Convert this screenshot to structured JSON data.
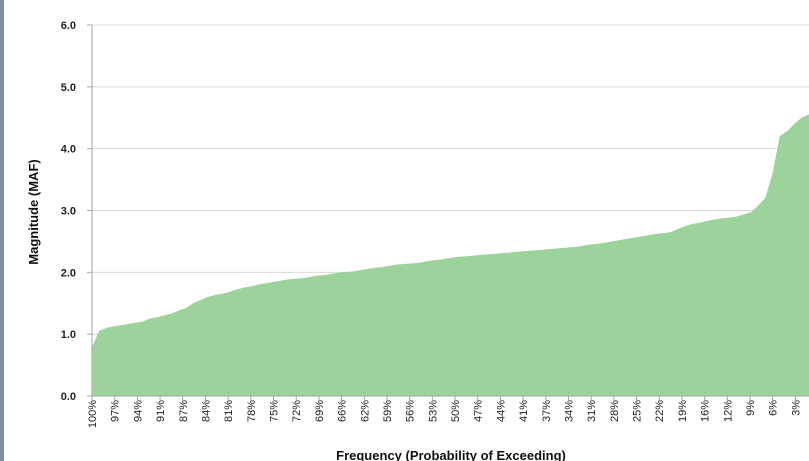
{
  "chart_data": {
    "type": "area",
    "title": "",
    "xlabel": "Frequency (Probability of Exceeding)",
    "ylabel": "Magnitude (MAF)",
    "ylim": [
      0,
      6
    ],
    "y_ticks": [
      "0.0",
      "1.0",
      "2.0",
      "3.0",
      "4.0",
      "5.0",
      "6.0"
    ],
    "grid": "horizontal",
    "legend": "none",
    "fill_color": "#9bd39b",
    "x_ticks": [
      "100%",
      "97%",
      "94%",
      "91%",
      "87%",
      "84%",
      "81%",
      "78%",
      "75%",
      "72%",
      "69%",
      "66%",
      "62%",
      "59%",
      "56%",
      "53%",
      "50%",
      "47%",
      "44%",
      "41%",
      "37%",
      "34%",
      "31%",
      "28%",
      "25%",
      "22%",
      "19%",
      "16%",
      "12%",
      "9%",
      "6%",
      "3%"
    ],
    "series": [
      {
        "name": "",
        "x": [
          100,
          99,
          98,
          97,
          96,
          95,
          94,
          93,
          92,
          91,
          90,
          89,
          88,
          87,
          86,
          85,
          84,
          83,
          82,
          81,
          80,
          79,
          78,
          77,
          76,
          75,
          74,
          73,
          72,
          71,
          70,
          69,
          68,
          67,
          66,
          65,
          64,
          63,
          62,
          61,
          60,
          59,
          58,
          57,
          56,
          55,
          54,
          53,
          52,
          51,
          50,
          49,
          48,
          47,
          46,
          45,
          44,
          43,
          42,
          41,
          40,
          39,
          38,
          37,
          36,
          35,
          34,
          33,
          32,
          31,
          30,
          29,
          28,
          27,
          26,
          25,
          24,
          23,
          22,
          21,
          20,
          19,
          18,
          17,
          16,
          15,
          14,
          13,
          12,
          11,
          10,
          9,
          8,
          7,
          6,
          5,
          4,
          3,
          2,
          1
        ],
        "values": [
          0.78,
          1.05,
          1.1,
          1.12,
          1.14,
          1.16,
          1.18,
          1.2,
          1.25,
          1.27,
          1.3,
          1.33,
          1.38,
          1.42,
          1.5,
          1.55,
          1.6,
          1.63,
          1.65,
          1.68,
          1.72,
          1.75,
          1.77,
          1.8,
          1.82,
          1.84,
          1.86,
          1.88,
          1.89,
          1.9,
          1.92,
          1.94,
          1.95,
          1.97,
          1.99,
          2.0,
          2.01,
          2.03,
          2.05,
          2.07,
          2.08,
          2.1,
          2.12,
          2.13,
          2.14,
          2.15,
          2.17,
          2.19,
          2.2,
          2.22,
          2.24,
          2.25,
          2.26,
          2.27,
          2.28,
          2.29,
          2.3,
          2.31,
          2.32,
          2.33,
          2.34,
          2.35,
          2.36,
          2.37,
          2.38,
          2.39,
          2.4,
          2.41,
          2.43,
          2.45,
          2.46,
          2.48,
          2.5,
          2.52,
          2.54,
          2.56,
          2.58,
          2.6,
          2.62,
          2.63,
          2.65,
          2.7,
          2.75,
          2.78,
          2.8,
          2.83,
          2.85,
          2.87,
          2.88,
          2.9,
          2.93,
          2.97,
          3.08,
          3.2,
          3.6,
          4.2,
          4.28,
          4.4,
          4.5,
          4.55
        ]
      }
    ]
  }
}
